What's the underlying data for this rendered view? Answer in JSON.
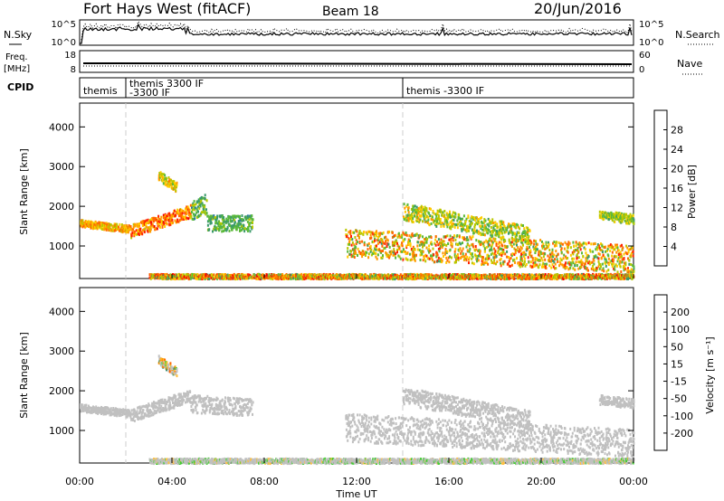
{
  "header": {
    "station": "Fort Hays West (fitACF)",
    "beam": "Beam 18",
    "date": "20/Jun/2016"
  },
  "nsky_panel": {
    "left_label": "N.Sky",
    "left_ticks": [
      "10^5",
      "10^0"
    ],
    "right_label": "N.Search",
    "right_ticks": [
      "10^5",
      "10^0"
    ]
  },
  "freq_panel": {
    "left_label_line1": "Freq.",
    "left_label_line2": "[MHz]",
    "left_ticks": [
      "18",
      "8"
    ],
    "right_label": "Nave",
    "right_ticks": [
      "60",
      "0"
    ]
  },
  "cpid_panel": {
    "label": "CPID",
    "segments": [
      {
        "start_hour": 0.0,
        "end_hour": 2.0,
        "text": "themis",
        "text2": ""
      },
      {
        "start_hour": 2.0,
        "end_hour": 14.0,
        "text": "themis 3300 IF",
        "text2": "-3300 IF"
      },
      {
        "start_hour": 14.0,
        "end_hour": 24.0,
        "text": "themis -3300 IF",
        "text2": ""
      }
    ]
  },
  "time_axis": {
    "label": "Time UT",
    "ticks": [
      "00:00",
      "04:00",
      "08:00",
      "12:00",
      "16:00",
      "20:00",
      "00:00"
    ]
  },
  "chart_data": [
    {
      "type": "heatmap",
      "name": "power",
      "ylabel": "Slant Range [km]",
      "ylim": [
        180,
        4600
      ],
      "xlim": [
        0,
        24
      ],
      "yticks": [
        "1000",
        "2000",
        "3000",
        "4000"
      ],
      "colorbar_label": "Power [dB]",
      "colorbar_ticks": [
        "28",
        "24",
        "20",
        "16",
        "12",
        "8",
        "4"
      ],
      "colorbar_range": [
        0,
        30
      ],
      "colorbar_colors": [
        "#0000ff",
        "#1e45c8",
        "#2e7aa0",
        "#3a9a6a",
        "#5ab83a",
        "#b8c800",
        "#ffcc00",
        "#ff9900",
        "#ff6600",
        "#ff2200",
        "#ee0000"
      ],
      "features": [
        {
          "x": [
            0.0,
            2.2
          ],
          "y_start": 1600,
          "y_end": 1450,
          "spread": 90,
          "power": [
            14,
            24
          ]
        },
        {
          "x": [
            2.2,
            4.8
          ],
          "y_start": 1400,
          "y_end": 1900,
          "spread": 160,
          "power": [
            16,
            28
          ]
        },
        {
          "x": [
            4.8,
            5.5
          ],
          "y_start": 1900,
          "y_end": 2100,
          "spread": 250,
          "power": [
            8,
            16
          ]
        },
        {
          "x": [
            5.5,
            7.5
          ],
          "y_start": 1600,
          "y_end": 1600,
          "spread": 200,
          "power": [
            8,
            14
          ]
        },
        {
          "x": [
            3.4,
            4.2
          ],
          "y_start": 2800,
          "y_end": 2500,
          "spread": 120,
          "power": [
            12,
            22
          ]
        },
        {
          "x": [
            11.5,
            24.0
          ],
          "y_start": 1100,
          "y_end": 700,
          "spread": 350,
          "power": [
            10,
            26
          ]
        },
        {
          "x": [
            14.0,
            19.5
          ],
          "y_start": 1900,
          "y_end": 1300,
          "spread": 220,
          "power": [
            10,
            20
          ]
        },
        {
          "x": [
            22.5,
            24.0
          ],
          "y_start": 1800,
          "y_end": 1700,
          "spread": 120,
          "power": [
            10,
            18
          ]
        },
        {
          "x": [
            3.0,
            24.0
          ],
          "y_start": 260,
          "y_end": 260,
          "spread": 60,
          "power": [
            10,
            28
          ]
        }
      ]
    },
    {
      "type": "heatmap",
      "name": "velocity",
      "ylabel": "Slant Range [km]",
      "ylim": [
        180,
        4600
      ],
      "xlim": [
        0,
        24
      ],
      "yticks": [
        "1000",
        "2000",
        "3000",
        "4000"
      ],
      "colorbar_label": "Velocity [m s⁻¹]",
      "colorbar_ticks": [
        "200",
        "100",
        "50",
        "15",
        "-15",
        "-50",
        "-100",
        "-200"
      ],
      "colorbar_range": [
        -250,
        250
      ],
      "colorbar_colors": [
        "#ff0000",
        "#ff6600",
        "#ff9900",
        "#ffc040",
        "#c0c0c0",
        "#c0c0c0",
        "#44cc33",
        "#3a8a6a",
        "#2a56a8",
        "#0000ff"
      ],
      "features": [
        {
          "x": [
            0.0,
            2.2
          ],
          "y_start": 1600,
          "y_end": 1450,
          "spread": 90,
          "velocity": [
            -10,
            10
          ]
        },
        {
          "x": [
            2.2,
            4.8
          ],
          "y_start": 1400,
          "y_end": 1900,
          "spread": 160,
          "velocity": [
            -10,
            10
          ]
        },
        {
          "x": [
            4.8,
            7.5
          ],
          "y_start": 1700,
          "y_end": 1600,
          "spread": 220,
          "velocity": [
            -40,
            20
          ]
        },
        {
          "x": [
            3.4,
            4.2
          ],
          "y_start": 2800,
          "y_end": 2500,
          "spread": 120,
          "velocity": [
            -200,
            150
          ]
        },
        {
          "x": [
            11.5,
            24.0
          ],
          "y_start": 1100,
          "y_end": 700,
          "spread": 350,
          "velocity": [
            -15,
            15
          ]
        },
        {
          "x": [
            14.0,
            19.5
          ],
          "y_start": 1900,
          "y_end": 1300,
          "spread": 220,
          "velocity": [
            -20,
            20
          ]
        },
        {
          "x": [
            22.5,
            24.0
          ],
          "y_start": 1800,
          "y_end": 1700,
          "spread": 120,
          "velocity": [
            -10,
            10
          ]
        },
        {
          "x": [
            3.0,
            24.0
          ],
          "y_start": 260,
          "y_end": 260,
          "spread": 60,
          "velocity": [
            -60,
            70
          ]
        }
      ]
    }
  ]
}
